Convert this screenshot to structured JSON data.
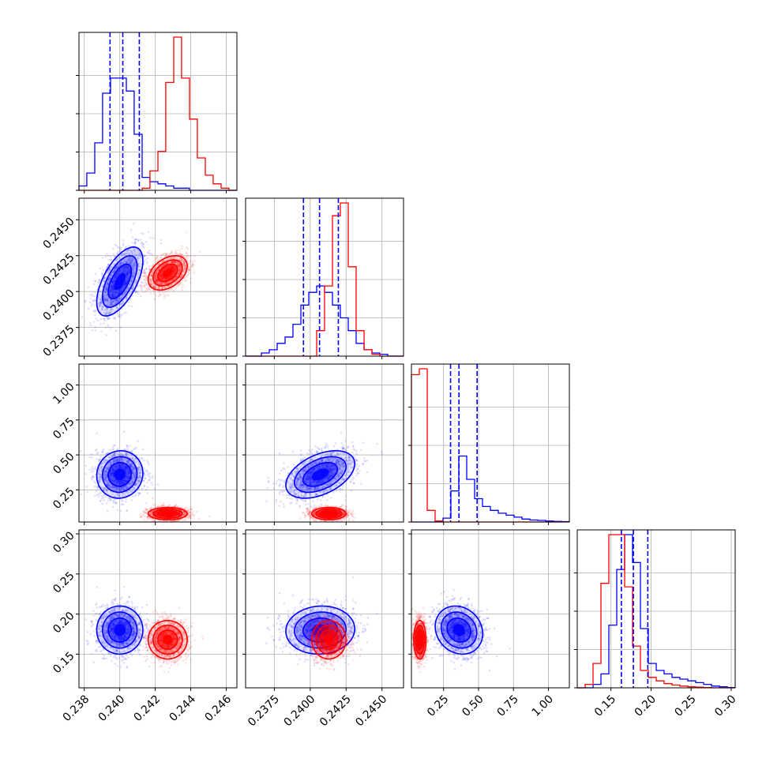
{
  "colors": {
    "series_a": "#0000ff",
    "series_b": "#ff0000",
    "grid": "#b0b0b0"
  },
  "chart_data": {
    "type": "corner",
    "grid": true,
    "parameters": [
      {
        "range": [
          0.2377,
          0.2466
        ],
        "ticks": [
          0.238,
          0.24,
          0.242,
          0.244,
          0.246
        ],
        "tick_labels": [
          "0.238",
          "0.240",
          "0.242",
          "0.244",
          "0.246"
        ]
      },
      {
        "range": [
          0.2355,
          0.2465
        ],
        "ticks": [
          0.2375,
          0.24,
          0.2425,
          0.245
        ],
        "tick_labels": [
          "0.2375",
          "0.2400",
          "0.2425",
          "0.2450"
        ]
      },
      {
        "range": [
          0.02,
          1.15
        ],
        "ticks": [
          0.25,
          0.5,
          0.75,
          1.0
        ],
        "tick_labels": [
          "0.25",
          "0.50",
          "0.75",
          "1.00"
        ]
      },
      {
        "range": [
          0.108,
          0.305
        ],
        "ticks": [
          0.15,
          0.2,
          0.25,
          0.3
        ],
        "tick_labels": [
          "0.15",
          "0.20",
          "0.25",
          "0.30"
        ]
      }
    ],
    "series": [
      {
        "color": "#0000ff",
        "mean": [
          0.24,
          0.2407,
          0.36,
          0.18
        ],
        "sd": [
          0.00065,
          0.0012,
          0.085,
          0.015
        ],
        "corr": [
          [
            1,
            0.6,
            0.05,
            0.0
          ],
          [
            0.6,
            1,
            0.45,
            0.05
          ],
          [
            0.05,
            0.45,
            1,
            -0.15
          ],
          [
            0.0,
            0.05,
            -0.15,
            1
          ]
        ],
        "quantiles": [
          [
            0.23945,
            0.24017,
            0.2411
          ],
          [
            0.23953,
            0.24065,
            0.24196
          ],
          [
            0.3,
            0.36,
            0.49
          ],
          [
            0.163,
            0.178,
            0.196
          ]
        ]
      },
      {
        "color": "#ff0000",
        "mean": [
          0.2427,
          0.2413,
          0.08,
          0.168
        ],
        "sd": [
          0.00055,
          0.0006,
          0.022,
          0.012
        ],
        "corr": [
          [
            1,
            0.4,
            0.0,
            0.0
          ],
          [
            0.4,
            1,
            0.0,
            0.0
          ],
          [
            0.0,
            0.0,
            1,
            0.0
          ],
          [
            0.0,
            0.0,
            0.0,
            1
          ]
        ],
        "quantiles": null
      }
    ],
    "histograms": [
      {
        "edges": [
          0.2377,
          0.23814,
          0.23859,
          0.23903,
          0.23948,
          0.23992,
          0.24037,
          0.24081,
          0.24126,
          0.2417,
          0.24215,
          0.24259,
          0.24304,
          0.24348,
          0.24393,
          0.24437,
          0.24482,
          0.24526,
          0.24571,
          0.24615,
          0.2466
        ],
        "a": [
          2,
          8,
          22,
          45,
          52,
          52,
          46,
          26,
          6,
          4,
          3,
          2,
          1,
          1,
          0,
          0,
          0,
          0,
          0,
          0
        ],
        "b": [
          0,
          0,
          0,
          0,
          0,
          0,
          0,
          0,
          1,
          9,
          18,
          50,
          71,
          52,
          33,
          15,
          7,
          3,
          1,
          0
        ]
      },
      {
        "edges": [
          0.2355,
          0.23605,
          0.2366,
          0.23715,
          0.2377,
          0.23825,
          0.2388,
          0.23935,
          0.2399,
          0.24045,
          0.241,
          0.24155,
          0.2421,
          0.24265,
          0.2432,
          0.24375,
          0.2443,
          0.24485,
          0.2454,
          0.24595,
          0.2465
        ],
        "a": [
          0,
          0,
          0.5,
          1,
          2,
          3,
          5,
          8,
          10,
          11,
          10,
          8,
          6,
          4,
          2,
          1,
          0.5,
          0.3,
          0,
          0
        ],
        "b": [
          0,
          0,
          0,
          0,
          0,
          0,
          0,
          0,
          0,
          4,
          11,
          22,
          24,
          14,
          4,
          1,
          0.3,
          0,
          0,
          0
        ]
      },
      {
        "edges": [
          0.02,
          0.0765,
          0.133,
          0.1895,
          0.246,
          0.3025,
          0.359,
          0.4155,
          0.472,
          0.5285,
          0.585,
          0.6415,
          0.698,
          0.7545,
          0.811,
          0.8675,
          0.924,
          0.9805,
          1.037,
          1.0935,
          1.15
        ],
        "a": [
          0,
          0,
          0,
          0,
          2,
          16,
          34,
          22,
          12,
          8,
          6,
          4.5,
          3.5,
          2.5,
          1.5,
          1,
          0.8,
          0.5,
          0.3,
          0.2
        ],
        "b": [
          76,
          79,
          6,
          0.5,
          0,
          0,
          0,
          0,
          0,
          0,
          0,
          0,
          0,
          0,
          0,
          0,
          0,
          0,
          0,
          0
        ]
      },
      {
        "edges": [
          0.108,
          0.11785,
          0.1277,
          0.13755,
          0.1474,
          0.15725,
          0.1671,
          0.17695,
          0.1868,
          0.19665,
          0.2065,
          0.21635,
          0.2262,
          0.23605,
          0.2459,
          0.25575,
          0.2656,
          0.27545,
          0.2853,
          0.29515,
          0.305
        ],
        "a": [
          0,
          0,
          1,
          4,
          18,
          34,
          44,
          36,
          17,
          7,
          5,
          4,
          3,
          2.5,
          2,
          1.5,
          1,
          0.5,
          0.3,
          0.1
        ],
        "b": [
          0,
          1,
          7,
          30,
          44,
          44,
          29,
          12,
          5,
          3,
          2,
          1.2,
          0.8,
          0.5,
          0.3,
          0.2,
          0.1,
          0,
          0,
          0
        ]
      }
    ]
  }
}
